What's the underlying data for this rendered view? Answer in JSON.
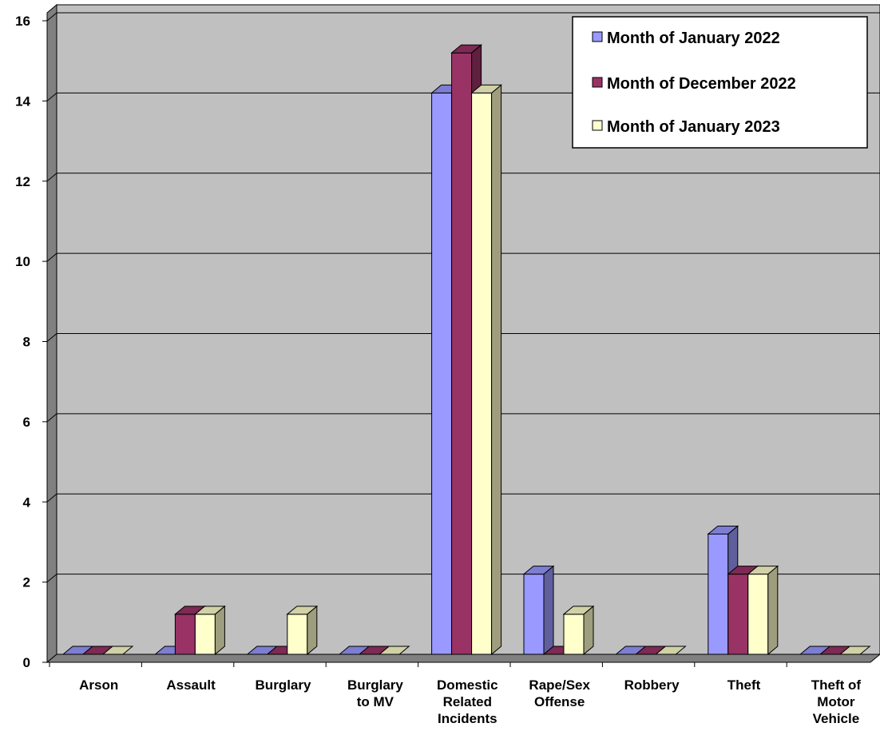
{
  "chart_data": {
    "type": "bar",
    "title": "",
    "xlabel": "",
    "ylabel": "",
    "ylim": [
      0,
      16
    ],
    "yticks": [
      0,
      2,
      4,
      6,
      8,
      10,
      12,
      14,
      16
    ],
    "grid": true,
    "legend_position": "top-right",
    "categories": [
      [
        "Arson"
      ],
      [
        "Assault"
      ],
      [
        "Burglary"
      ],
      [
        "Burglary",
        "to MV"
      ],
      [
        "Domestic",
        "Related",
        "Incidents"
      ],
      [
        "Rape/Sex",
        "Offense"
      ],
      [
        "Robbery"
      ],
      [
        "Theft"
      ],
      [
        "Theft of",
        "Motor",
        "Vehicle"
      ]
    ],
    "series": [
      {
        "name": "Month of January 2022",
        "color": "#9999ff",
        "values": [
          0,
          0,
          0,
          0,
          14,
          2,
          0,
          3,
          0
        ]
      },
      {
        "name": "Month of December 2022",
        "color": "#993366",
        "values": [
          0,
          1,
          0,
          0,
          15,
          0,
          0,
          2,
          0
        ]
      },
      {
        "name": "Month of January 2023",
        "color": "#ffffcc",
        "values": [
          0,
          1,
          1,
          0,
          14,
          1,
          0,
          2,
          0
        ]
      }
    ]
  }
}
